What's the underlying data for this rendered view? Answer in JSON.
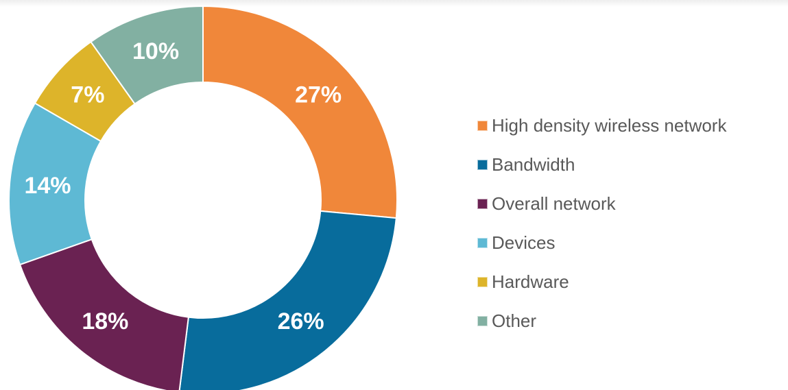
{
  "chart_data": {
    "type": "pie",
    "variant": "donut",
    "title": "",
    "legend_position": "right",
    "start_angle_deg": 0,
    "direction": "clockwise",
    "slices": [
      {
        "label": "High density wireless network",
        "value": 27,
        "display": "27%",
        "color": "#F0873A"
      },
      {
        "label": "Bandwidth",
        "value": 26,
        "display": "26%",
        "color": "#086C9C"
      },
      {
        "label": "Overall network",
        "value": 18,
        "display": "18%",
        "color": "#6A2252"
      },
      {
        "label": "Devices",
        "value": 14,
        "display": "14%",
        "color": "#5EB9D4"
      },
      {
        "label": "Hardware",
        "value": 7,
        "display": "7%",
        "color": "#DDB42A"
      },
      {
        "label": "Other",
        "value": 10,
        "display": "10%",
        "color": "#82B0A2"
      }
    ]
  }
}
